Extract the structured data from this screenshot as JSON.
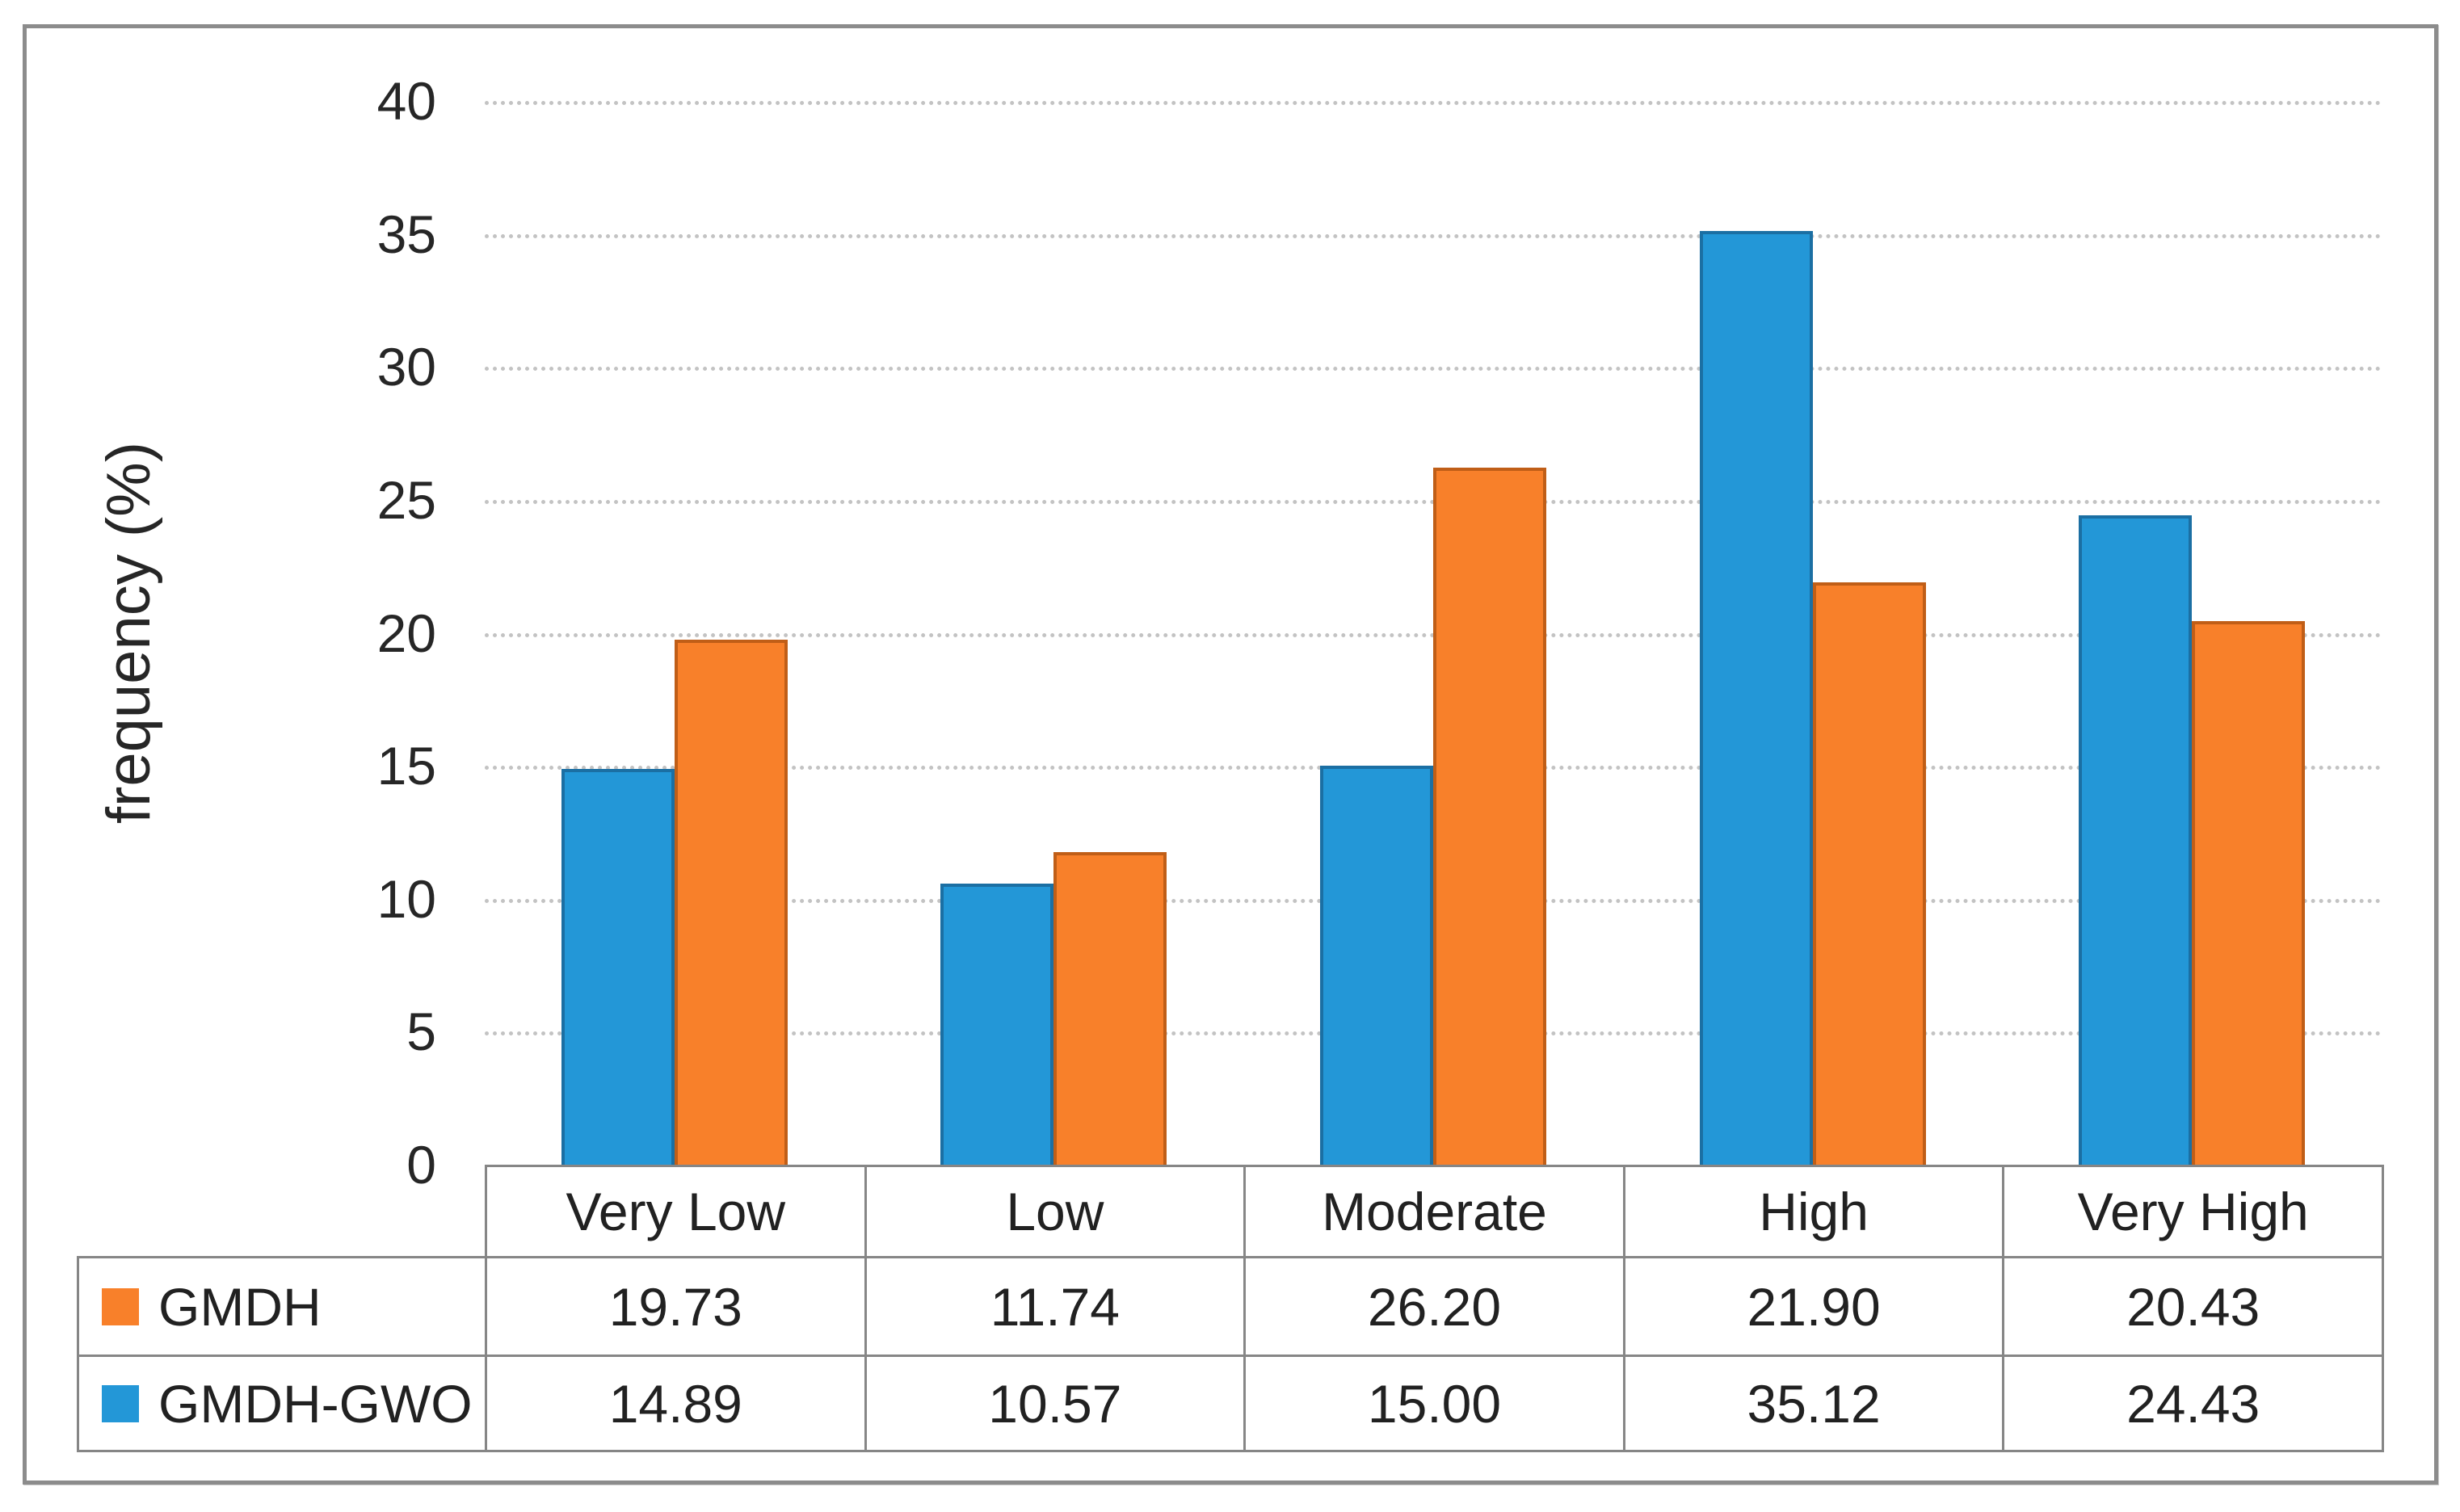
{
  "chart_data": {
    "type": "bar",
    "title": "",
    "xlabel": "",
    "ylabel": "frequency (%)",
    "ylim": [
      0,
      40
    ],
    "yticks": [
      0,
      5,
      10,
      15,
      20,
      25,
      30,
      35,
      40
    ],
    "grid": "horizontal dotted",
    "legend_position": "table rows below chart",
    "categories": [
      "Very Low",
      "Low",
      "Moderate",
      "High",
      "Very High"
    ],
    "series": [
      {
        "name": "GMDH",
        "color": "#F8802A",
        "border_color": "#C05E17",
        "values": [
          19.73,
          11.74,
          26.2,
          21.9,
          20.43
        ],
        "labels": [
          "19.73",
          "11.74",
          "26.20",
          "21.90",
          "20.43"
        ]
      },
      {
        "name": "GMDH-GWO",
        "color": "#2397D7",
        "border_color": "#1B6FA3",
        "values": [
          14.89,
          10.57,
          15.0,
          35.12,
          24.43
        ],
        "labels": [
          "14.89",
          "10.57",
          "15.00",
          "35.12",
          "24.43"
        ]
      }
    ]
  }
}
